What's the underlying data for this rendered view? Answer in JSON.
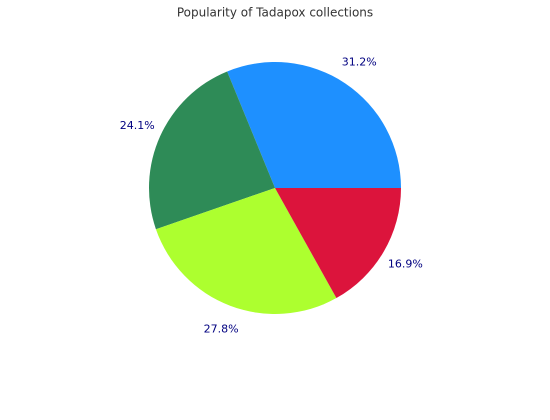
{
  "chart_data": {
    "type": "pie",
    "title": "Popularity of Tadapox collections",
    "values": [
      31.2,
      24.1,
      27.8,
      16.9
    ],
    "value_labels": [
      "31.2%",
      "24.1%",
      "27.8%",
      "16.9%"
    ],
    "colors": [
      "#1e90ff",
      "#2e8b57",
      "#adff2f",
      "#dc143c"
    ]
  }
}
